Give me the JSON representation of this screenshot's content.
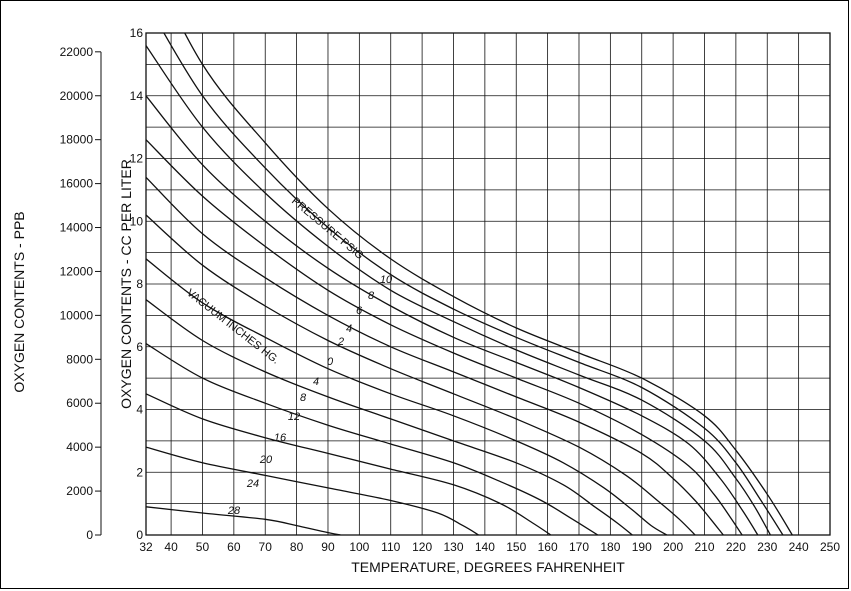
{
  "chart_data": {
    "type": "line",
    "xlabel": "TEMPERATURE, DEGREES FAHRENHEIT",
    "ylabel": "OXYGEN CONTENTS - CC PER LITER",
    "y2label": "OXYGEN CONTENTS - PPB",
    "xlim": [
      32,
      250
    ],
    "ylim": [
      0,
      16
    ],
    "x_ticks": [
      "32",
      "40",
      "50",
      "60",
      "70",
      "80",
      "90",
      "100",
      "110",
      "120",
      "130",
      "140",
      "150",
      "160",
      "170",
      "180",
      "190",
      "200",
      "210",
      "220",
      "230",
      "240",
      "250"
    ],
    "y_ticks": [
      "0",
      "2",
      "4",
      "6",
      "8",
      "10",
      "12",
      "14",
      "16"
    ],
    "ppb_ticks": [
      "0",
      "2000",
      "4000",
      "6000",
      "8000",
      "10000",
      "12000",
      "14000",
      "16000",
      "18000",
      "20000",
      "22000"
    ],
    "grid": true,
    "group_labels": {
      "pressure": "PRESSURE PSIG",
      "vacuum": "VACUUM INCHES HG."
    },
    "series": [
      {
        "name": "10",
        "group": "pressure",
        "x": [
          32,
          50,
          70,
          90,
          110,
          130,
          150,
          170,
          190,
          210,
          220,
          230,
          238
        ],
        "y": [
          18.5,
          15.0,
          12.5,
          10.4,
          8.8,
          7.6,
          6.6,
          5.8,
          5.0,
          3.8,
          2.7,
          1.3,
          0
        ]
      },
      {
        "name": "8",
        "group": "pressure",
        "x": [
          32,
          50,
          70,
          90,
          110,
          130,
          150,
          170,
          190,
          210,
          220,
          228,
          235
        ],
        "y": [
          17.0,
          14.0,
          11.7,
          9.8,
          8.3,
          7.2,
          6.3,
          5.5,
          4.7,
          3.4,
          2.3,
          1.1,
          0
        ]
      },
      {
        "name": "6",
        "group": "pressure",
        "x": [
          32,
          50,
          70,
          90,
          110,
          130,
          150,
          170,
          190,
          210,
          220,
          226,
          231
        ],
        "y": [
          15.6,
          13.0,
          10.9,
          9.2,
          7.8,
          6.8,
          5.9,
          5.1,
          4.3,
          3.0,
          1.8,
          0.9,
          0
        ]
      },
      {
        "name": "4",
        "group": "pressure",
        "x": [
          32,
          50,
          70,
          90,
          110,
          130,
          150,
          170,
          190,
          205,
          215,
          222,
          227
        ],
        "y": [
          14.0,
          11.8,
          10.0,
          8.5,
          7.3,
          6.3,
          5.5,
          4.7,
          3.8,
          2.9,
          1.8,
          0.8,
          0
        ]
      },
      {
        "name": "2",
        "group": "pressure",
        "x": [
          32,
          50,
          70,
          90,
          110,
          130,
          150,
          170,
          190,
          205,
          213,
          218,
          222
        ],
        "y": [
          12.6,
          10.8,
          9.2,
          7.8,
          6.7,
          5.8,
          5.0,
          4.2,
          3.2,
          2.2,
          1.3,
          0.6,
          0
        ]
      },
      {
        "name": "0",
        "group": "pressure",
        "x": [
          32,
          50,
          70,
          90,
          110,
          130,
          150,
          170,
          190,
          200,
          207,
          212,
          216
        ],
        "y": [
          11.4,
          9.6,
          8.2,
          7.0,
          6.0,
          5.2,
          4.4,
          3.6,
          2.6,
          1.8,
          1.1,
          0.5,
          0
        ]
      },
      {
        "name": "4",
        "group": "vacuum",
        "x": [
          32,
          50,
          70,
          90,
          110,
          130,
          150,
          170,
          185,
          195,
          202,
          207
        ],
        "y": [
          10.2,
          8.6,
          7.3,
          6.2,
          5.3,
          4.5,
          3.7,
          2.8,
          1.9,
          1.1,
          0.5,
          0
        ]
      },
      {
        "name": "8",
        "group": "vacuum",
        "x": [
          32,
          50,
          70,
          90,
          110,
          130,
          150,
          165,
          178,
          187,
          193,
          198
        ],
        "y": [
          8.8,
          7.4,
          6.3,
          5.3,
          4.5,
          3.8,
          3.0,
          2.3,
          1.5,
          0.8,
          0.3,
          0
        ]
      },
      {
        "name": "12",
        "group": "vacuum",
        "x": [
          32,
          50,
          70,
          90,
          110,
          130,
          150,
          165,
          175,
          182,
          187
        ],
        "y": [
          7.5,
          6.2,
          5.2,
          4.4,
          3.7,
          3.0,
          2.3,
          1.6,
          0.9,
          0.4,
          0
        ]
      },
      {
        "name": "16",
        "group": "vacuum",
        "x": [
          32,
          50,
          70,
          90,
          110,
          130,
          145,
          158,
          168,
          176
        ],
        "y": [
          6.1,
          5.0,
          4.2,
          3.5,
          2.9,
          2.3,
          1.7,
          1.1,
          0.5,
          0
        ]
      },
      {
        "name": "20",
        "group": "vacuum",
        "x": [
          32,
          50,
          70,
          90,
          110,
          130,
          145,
          155,
          161
        ],
        "y": [
          4.5,
          3.7,
          3.1,
          2.6,
          2.1,
          1.6,
          1.0,
          0.4,
          0
        ]
      },
      {
        "name": "24",
        "group": "vacuum",
        "x": [
          32,
          50,
          70,
          90,
          110,
          125,
          133,
          138
        ],
        "y": [
          2.8,
          2.3,
          1.9,
          1.5,
          1.1,
          0.7,
          0.3,
          0
        ]
      },
      {
        "name": "28",
        "group": "vacuum",
        "x": [
          32,
          50,
          70,
          80,
          88,
          94
        ],
        "y": [
          0.9,
          0.7,
          0.5,
          0.3,
          0.12,
          0
        ]
      }
    ]
  }
}
